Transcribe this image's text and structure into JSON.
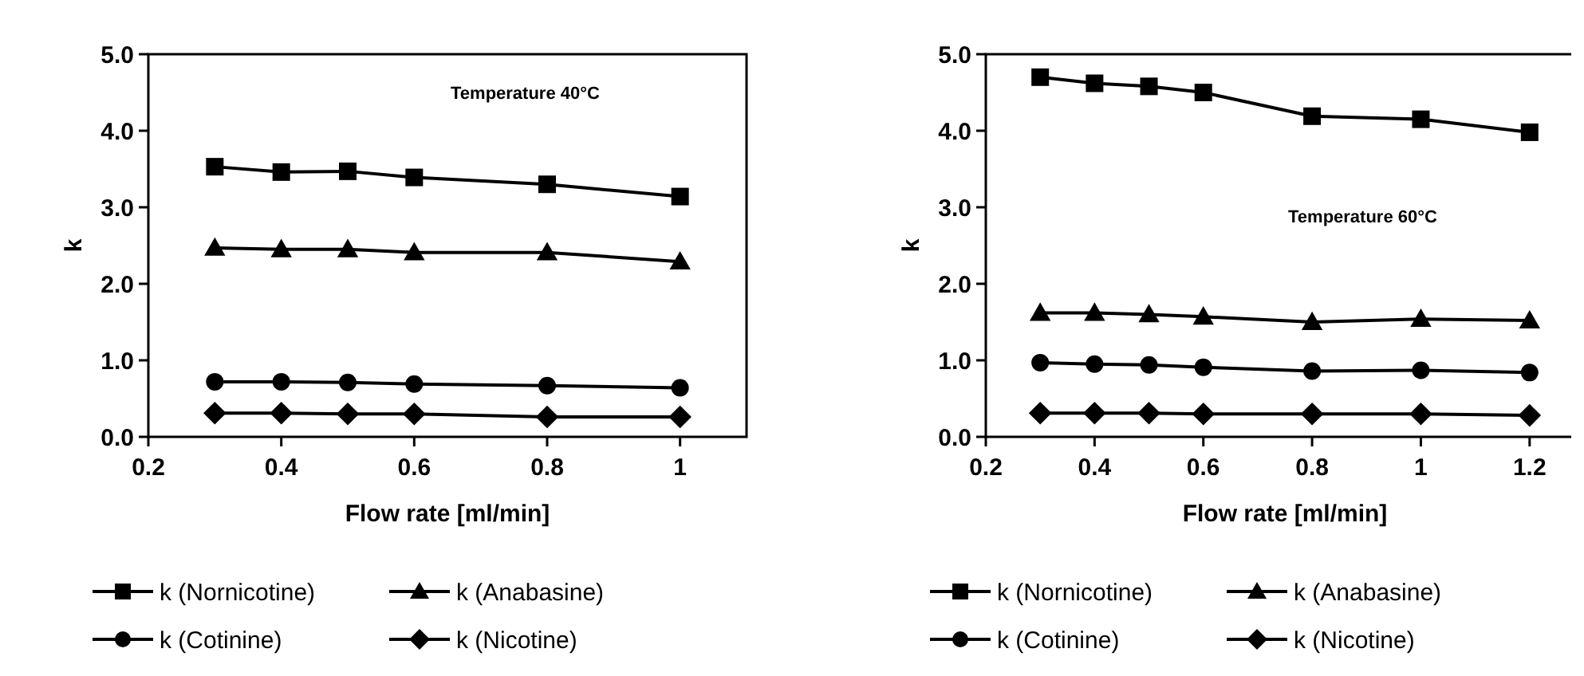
{
  "chart_data": [
    {
      "type": "line",
      "xlabel": "Flow rate [ml/min]",
      "ylabel": "k",
      "annotations": [
        "Temperature 40°C"
      ],
      "xlim": [
        0.2,
        1.1
      ],
      "xticks": [
        0.2,
        0.4,
        0.6,
        0.8,
        1
      ],
      "ylim": [
        0,
        5
      ],
      "yticks": [
        {
          "value": 0,
          "label": "0.0"
        },
        {
          "value": 1,
          "label": "1.0"
        },
        {
          "value": 2,
          "label": "2.0"
        },
        {
          "value": 3,
          "label": "3.0"
        },
        {
          "value": 4,
          "label": "4.0"
        },
        {
          "value": 5,
          "label": "5.0"
        }
      ],
      "x": [
        0.3,
        0.4,
        0.5,
        0.6,
        0.8,
        1
      ],
      "legend": "bottom",
      "grid": false,
      "line_style": "solid",
      "series": [
        {
          "name": "k (Nornicotine)",
          "color": "#000000",
          "marker": "square",
          "values": [
            3.53,
            3.46,
            3.47,
            3.39,
            3.3,
            3.14
          ]
        },
        {
          "name": "k (Anabasine)",
          "color": "#000000",
          "marker": "triangle",
          "values": [
            2.47,
            2.45,
            2.45,
            2.41,
            2.41,
            2.29
          ]
        },
        {
          "name": "k (Cotinine)",
          "color": "#000000",
          "marker": "circle",
          "values": [
            0.72,
            0.72,
            0.71,
            0.69,
            0.67,
            0.64
          ]
        },
        {
          "name": "k (Nicotine)",
          "color": "#000000",
          "marker": "diamond",
          "values": [
            0.31,
            0.31,
            0.3,
            0.3,
            0.26,
            0.26
          ]
        }
      ]
    },
    {
      "type": "line",
      "xlabel": "Flow rate [ml/min]",
      "ylabel": "k",
      "annotations": [
        "Temperature 60°C"
      ],
      "xlim": [
        0.2,
        1.3
      ],
      "xticks": [
        0.2,
        0.4,
        0.6,
        0.8,
        1,
        1.2
      ],
      "ylim": [
        0,
        5
      ],
      "yticks": [
        {
          "value": 0,
          "label": "0.0"
        },
        {
          "value": 1,
          "label": "1.0"
        },
        {
          "value": 2,
          "label": "2.0"
        },
        {
          "value": 3,
          "label": "3.0"
        },
        {
          "value": 4,
          "label": "4.0"
        },
        {
          "value": 5,
          "label": "5.0"
        }
      ],
      "x": [
        0.3,
        0.4,
        0.5,
        0.6,
        0.8,
        1,
        1.2
      ],
      "legend": "bottom",
      "grid": false,
      "line_style": "solid",
      "series": [
        {
          "name": "k (Nornicotine)",
          "color": "#000000",
          "marker": "square",
          "values": [
            4.7,
            4.62,
            4.58,
            4.5,
            4.19,
            4.15,
            3.98
          ]
        },
        {
          "name": "k (Anabasine)",
          "color": "#000000",
          "marker": "triangle",
          "values": [
            1.62,
            1.62,
            1.6,
            1.57,
            1.5,
            1.54,
            1.52
          ]
        },
        {
          "name": "k (Cotinine)",
          "color": "#000000",
          "marker": "circle",
          "values": [
            0.97,
            0.95,
            0.94,
            0.91,
            0.86,
            0.87,
            0.84
          ]
        },
        {
          "name": "k (Nicotine)",
          "color": "#000000",
          "marker": "diamond",
          "values": [
            0.31,
            0.31,
            0.31,
            0.3,
            0.3,
            0.3,
            0.28
          ]
        }
      ]
    }
  ]
}
